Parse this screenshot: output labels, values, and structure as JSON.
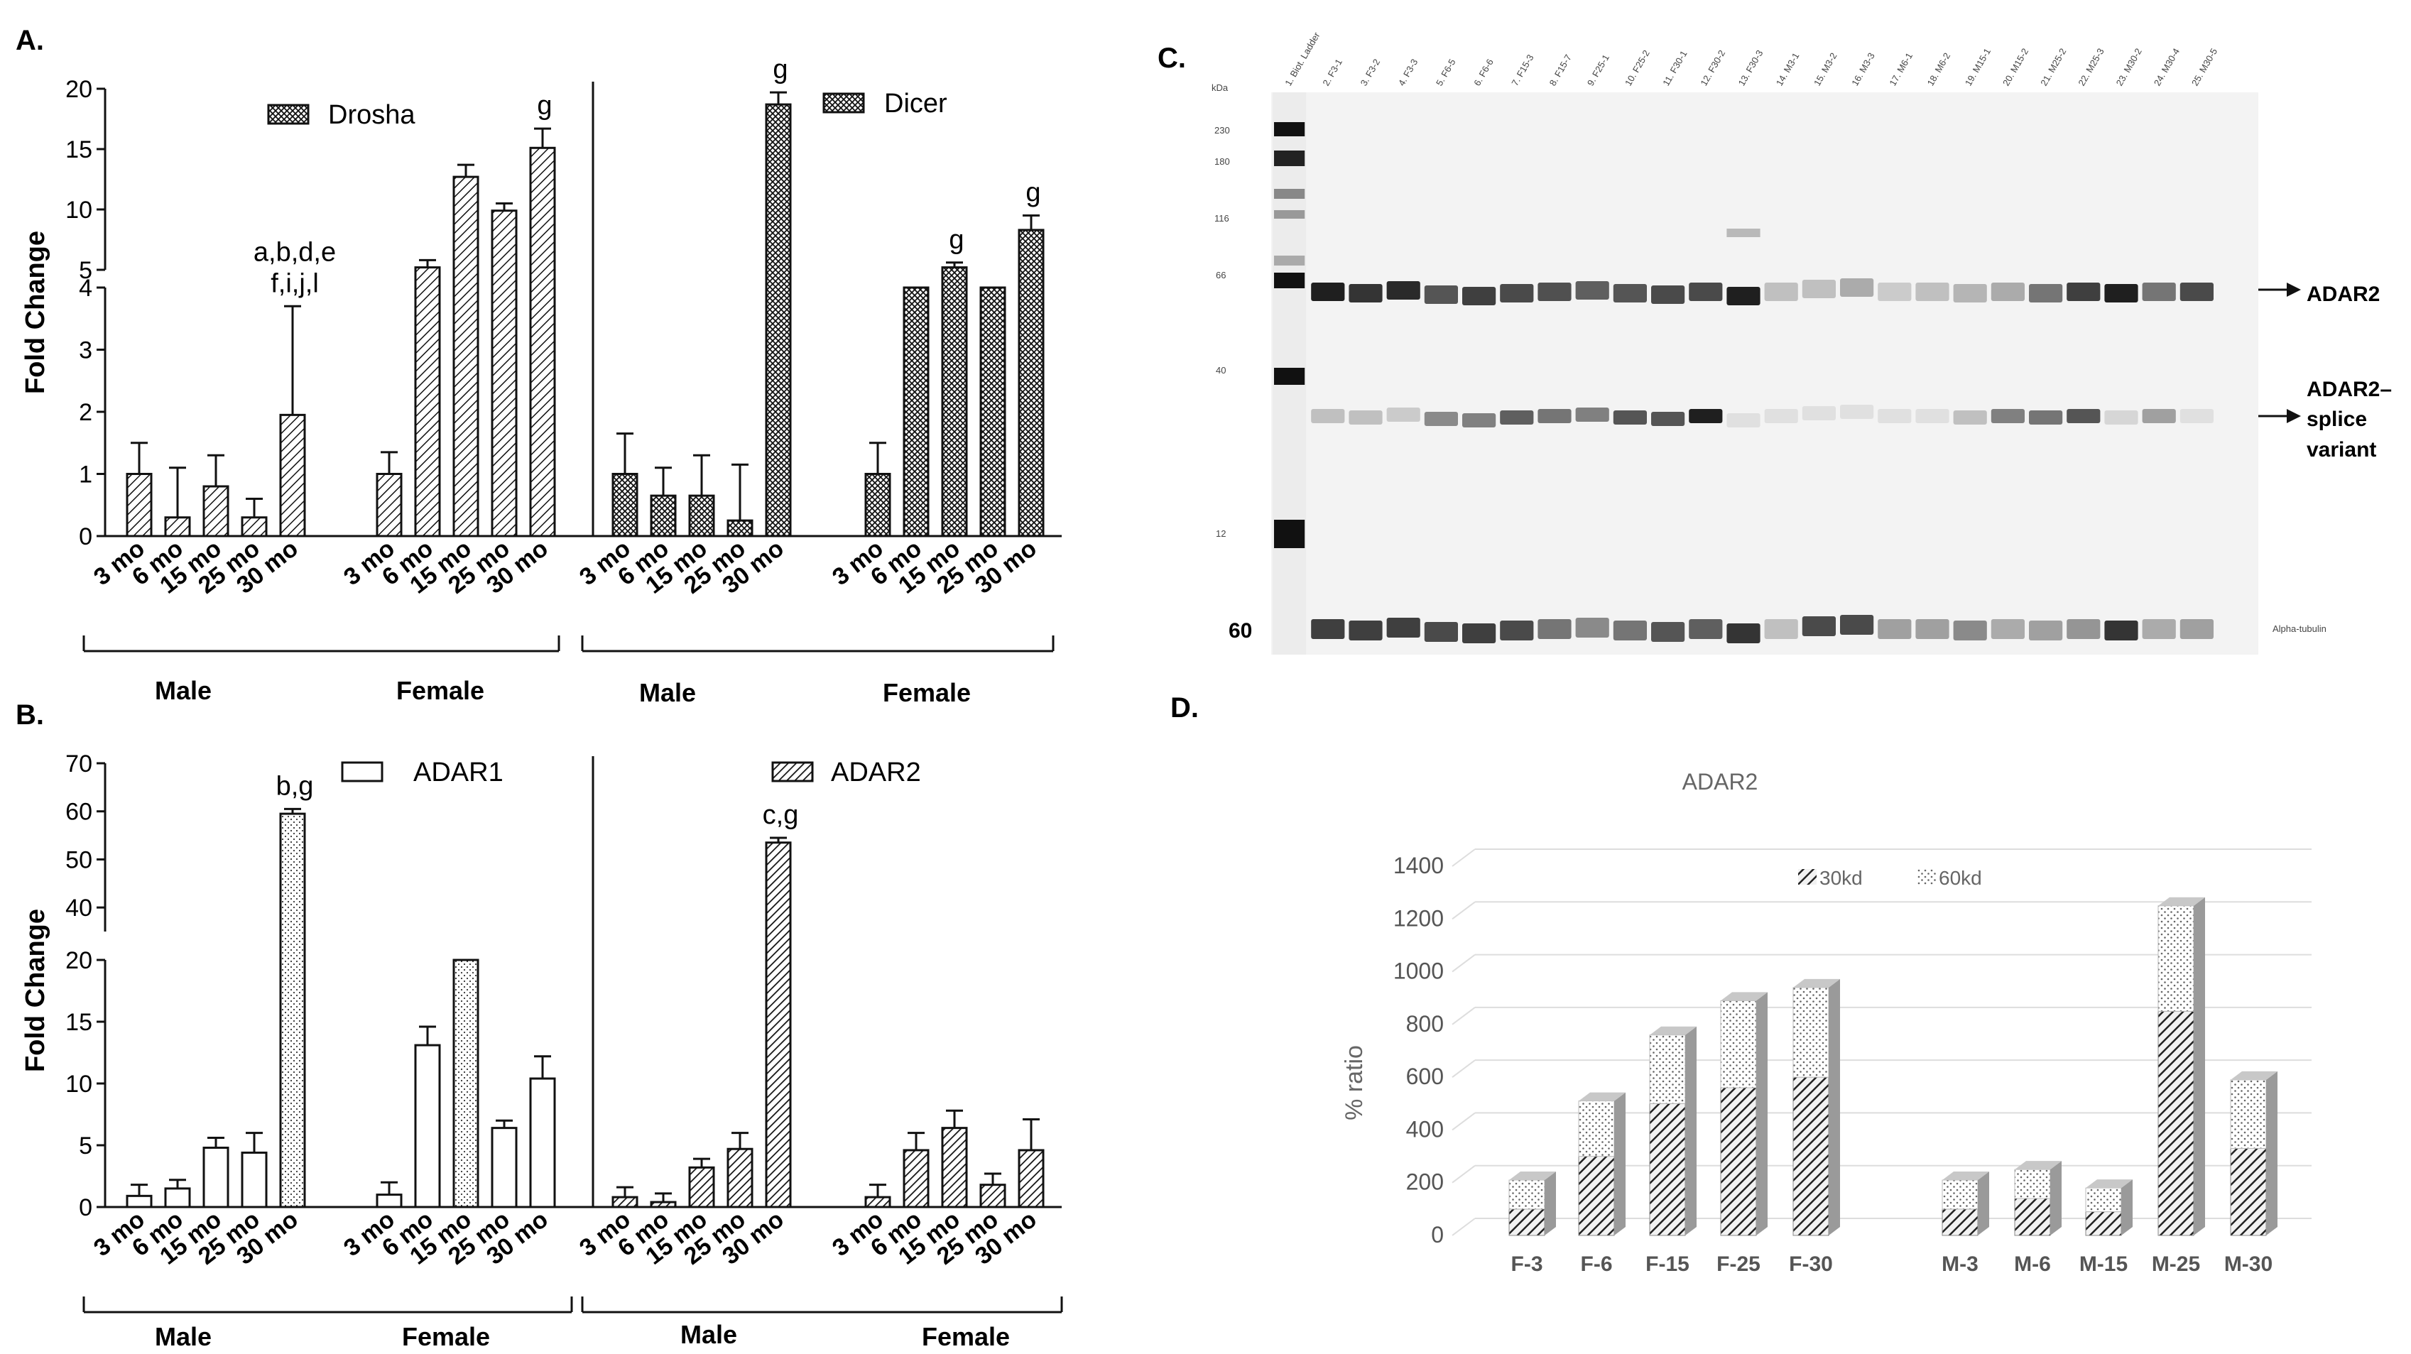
{
  "panel_labels": {
    "a": "A.",
    "b": "B.",
    "c": "C.",
    "d": "D."
  },
  "common": {
    "fold_change_label": "Fold Change",
    "fold_change_label_a": "Fold  Change",
    "male": "Male",
    "female": "Female",
    "ages": [
      "3 mo",
      "6 mo",
      "15 mo",
      "25 mo",
      "30 mo"
    ]
  },
  "chart_data": [
    {
      "id": "A-left",
      "type": "bar",
      "legend": "Drosha",
      "ylabel": "Fold  Change",
      "y_ticks_lower": [
        "0",
        "1",
        "2",
        "3",
        "4"
      ],
      "y_ticks_upper": [
        "5",
        "10",
        "15",
        "20"
      ],
      "ylim_lower": [
        0,
        4
      ],
      "ylim_upper": [
        5,
        20
      ],
      "groups": [
        "Male",
        "Female"
      ],
      "categories": [
        "3 mo",
        "6 mo",
        "15 mo",
        "25 mo",
        "30 mo"
      ],
      "series": [
        {
          "name": "Male",
          "values": [
            1.0,
            0.3,
            0.8,
            0.3,
            1.95
          ],
          "errors": [
            0.5,
            0.8,
            0.5,
            0.3,
            1.75
          ]
        },
        {
          "name": "Female",
          "values": [
            1.0,
            5.2,
            12.7,
            9.9,
            15.1
          ],
          "errors": [
            0.35,
            0.6,
            1.0,
            0.6,
            1.6
          ]
        }
      ],
      "annotations": [
        {
          "text": "a,b,d,e",
          "group": 0,
          "index": 4
        },
        {
          "text": "f,i,j,l",
          "group": 0,
          "index": 4
        },
        {
          "text": "g",
          "group": 1,
          "index": 4
        }
      ]
    },
    {
      "id": "A-right",
      "type": "bar",
      "legend": "Dicer",
      "groups": [
        "Male",
        "Female"
      ],
      "categories": [
        "3 mo",
        "6 mo",
        "15 mo",
        "25 mo",
        "30 mo"
      ],
      "series": [
        {
          "name": "Male",
          "values": [
            1.0,
            0.65,
            0.65,
            0.25,
            18.7
          ],
          "errors": [
            0.65,
            0.45,
            0.65,
            0.9,
            1.0
          ]
        },
        {
          "name": "Female",
          "values": [
            1.0,
            4.0,
            5.2,
            4.0,
            8.3
          ],
          "errors": [
            0.5,
            0,
            0.4,
            0,
            1.2
          ]
        }
      ],
      "annotations": [
        {
          "text": "g",
          "group": 0,
          "index": 4
        },
        {
          "text": "g",
          "group": 1,
          "index": 2
        },
        {
          "text": "g",
          "group": 1,
          "index": 4
        }
      ]
    },
    {
      "id": "B-left",
      "type": "bar",
      "legend": "ADAR1",
      "ylabel": "Fold Change",
      "y_ticks_lower": [
        "0",
        "5",
        "10",
        "15",
        "20"
      ],
      "y_ticks_upper": [
        "40",
        "50",
        "60",
        "70"
      ],
      "ylim_lower": [
        0,
        20
      ],
      "ylim_upper": [
        35,
        70
      ],
      "groups": [
        "Male",
        "Female"
      ],
      "categories": [
        "3 mo",
        "6 mo",
        "15 mo",
        "25 mo",
        "30 mo"
      ],
      "series": [
        {
          "name": "Male",
          "values": [
            0.9,
            1.5,
            4.8,
            4.4,
            59.5
          ],
          "errors": [
            0.9,
            0.7,
            0.8,
            1.6,
            1.0
          ]
        },
        {
          "name": "Female",
          "values": [
            1.0,
            13.1,
            20.0,
            6.4,
            10.4
          ],
          "errors": [
            1.0,
            1.5,
            0,
            0.6,
            1.8
          ]
        }
      ],
      "annotations": [
        {
          "text": "b,g",
          "group": 0,
          "index": 4
        }
      ]
    },
    {
      "id": "B-right",
      "type": "bar",
      "legend": "ADAR2",
      "groups": [
        "Male",
        "Female"
      ],
      "categories": [
        "3 mo",
        "6 mo",
        "15 mo",
        "25 mo",
        "30 mo"
      ],
      "series": [
        {
          "name": "Male",
          "values": [
            0.8,
            0.4,
            3.2,
            4.7,
            53.5
          ],
          "errors": [
            0.8,
            0.7,
            0.7,
            1.3,
            1.0
          ]
        },
        {
          "name": "Female",
          "values": [
            0.8,
            4.6,
            6.4,
            1.8,
            4.6
          ],
          "errors": [
            1.0,
            1.4,
            1.4,
            0.9,
            2.5
          ]
        }
      ],
      "annotations": [
        {
          "text": "c,g",
          "group": 0,
          "index": 4
        }
      ]
    },
    {
      "id": "C",
      "type": "table",
      "kda_label": "kDa",
      "ladder_marks": [
        "230",
        "180",
        "116",
        "66",
        "40",
        "12"
      ],
      "lane_labels": [
        "1. Biot. Ladder",
        "2. F3-1",
        "3. F3-2",
        "4. F3-3",
        "5. F6-5",
        "6. F6-6",
        "7. F15-3",
        "8. F15-7",
        "9. F25-1",
        "10. F25-2",
        "11. F30-1",
        "12. F30-2",
        "13. F30-3",
        "14. M3-1",
        "15. M3-2",
        "16. M3-3",
        "17. M6-1",
        "18. M6-2",
        "19. M15-1",
        "20. M15-2",
        "21. M25-2",
        "22. M25-3",
        "23. M30-2",
        "24. M30-4",
        "25. M30-5"
      ],
      "band_intensity": {
        "adar2": [
          0.95,
          0.85,
          0.9,
          0.7,
          0.8,
          0.75,
          0.72,
          0.65,
          0.7,
          0.75,
          0.75,
          0.95,
          0.2,
          0.2,
          0.3,
          0.15,
          0.2,
          0.25,
          0.3,
          0.55,
          0.8,
          0.95,
          0.55,
          0.75
        ],
        "splice": [
          0.2,
          0.2,
          0.15,
          0.45,
          0.5,
          0.65,
          0.55,
          0.5,
          0.7,
          0.7,
          0.95,
          0.05,
          0.05,
          0.05,
          0.05,
          0.05,
          0.05,
          0.2,
          0.5,
          0.55,
          0.7,
          0.1,
          0.35,
          0.05
        ],
        "tubulin": [
          0.8,
          0.8,
          0.8,
          0.75,
          0.8,
          0.75,
          0.55,
          0.45,
          0.55,
          0.7,
          0.65,
          0.85,
          0.2,
          0.75,
          0.75,
          0.35,
          0.35,
          0.45,
          0.3,
          0.35,
          0.4,
          0.85,
          0.3,
          0.35
        ]
      },
      "band_labels": {
        "adar2": "ADAR2",
        "splice_1": "ADAR2–",
        "splice_2": "splice",
        "splice_3": "variant",
        "tubulin": "Alpha-tubulin",
        "tubulin_kda": "60"
      }
    },
    {
      "id": "D",
      "type": "bar",
      "stacked": true,
      "title": "ADAR2",
      "ylabel": "% ratio",
      "ylim": [
        0,
        1400
      ],
      "y_ticks": [
        "0",
        "200",
        "400",
        "600",
        "800",
        "1000",
        "1200",
        "1400"
      ],
      "categories": [
        "F-3",
        "F-6",
        "F-15",
        "F-25",
        "F-30",
        "M-3",
        "M-6",
        "M-15",
        "M-25",
        "M-30"
      ],
      "series": [
        {
          "name": "30kd",
          "values": [
            100,
            300,
            500,
            560,
            600,
            100,
            140,
            90,
            850,
            330
          ]
        },
        {
          "name": "60kd",
          "values": [
            110,
            210,
            260,
            330,
            340,
            110,
            110,
            90,
            400,
            260
          ]
        }
      ]
    }
  ]
}
